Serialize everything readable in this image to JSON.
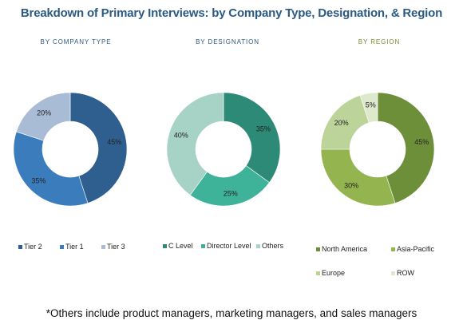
{
  "title": "Breakdown of Primary Interviews: by Company Type, Designation, & Region",
  "footnote": "*Others include product managers, marketing managers, and sales managers",
  "chart_data": [
    {
      "type": "pie",
      "title": "BY COMPANY TYPE",
      "title_color": "#2a5a83",
      "categories": [
        "Tier 2",
        "Tier 1",
        "Tier 3"
      ],
      "values": [
        45,
        35,
        20
      ],
      "labels": [
        "45%",
        "35%",
        "20%"
      ],
      "colors": [
        "#2f5f8f",
        "#3b7cbd",
        "#a9bcd6"
      ],
      "legend_placement": "bottom"
    },
    {
      "type": "pie",
      "title": "BY DESIGNATION",
      "title_color": "#2a5a83",
      "categories": [
        "C Level",
        "Director Level",
        "Others"
      ],
      "values": [
        35,
        25,
        40
      ],
      "labels": [
        "35%",
        "25%",
        "40%"
      ],
      "colors": [
        "#2d8a76",
        "#3fb29a",
        "#a6d3c6"
      ],
      "legend_placement": "bottom"
    },
    {
      "type": "pie",
      "title": "BY REGION",
      "title_color": "#7a8c2a",
      "categories": [
        "North America",
        "Asia-Pacific",
        "Europe",
        "ROW"
      ],
      "values": [
        45,
        30,
        20,
        5
      ],
      "labels": [
        "45%",
        "30%",
        "20%",
        "5%"
      ],
      "colors": [
        "#6e8f39",
        "#93b44e",
        "#bcd39a",
        "#dde8cc"
      ],
      "legend_placement": "bottom"
    }
  ]
}
